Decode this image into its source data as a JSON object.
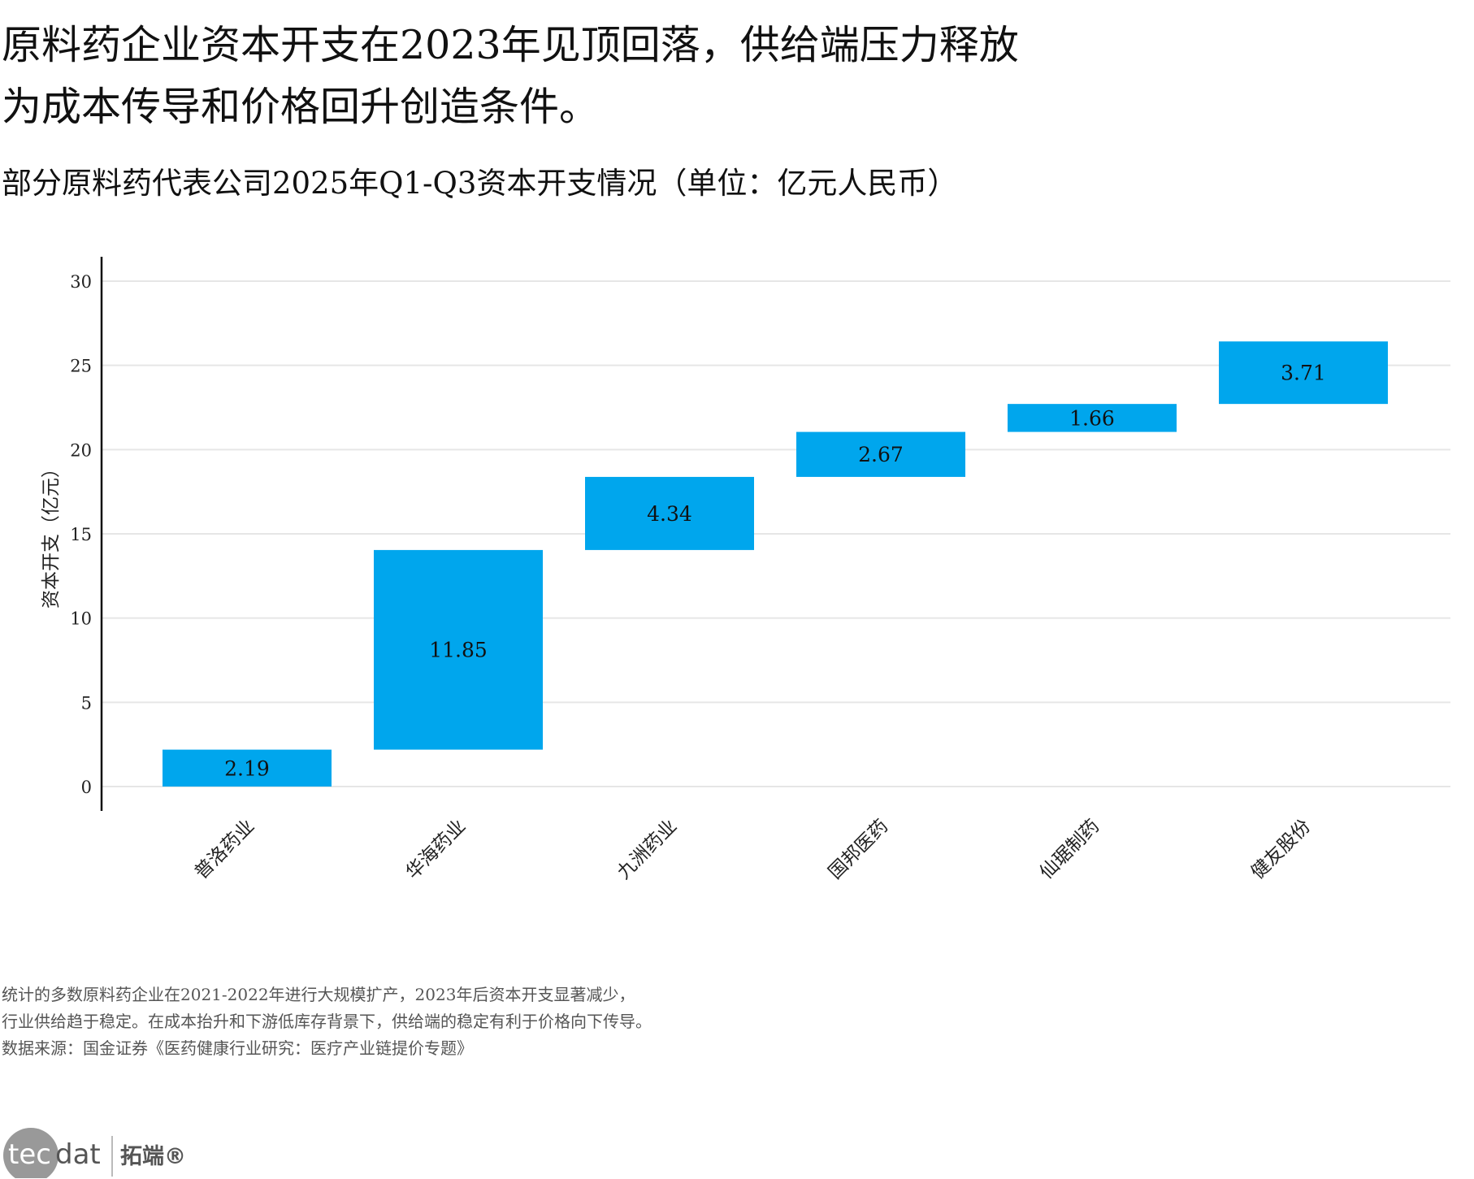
{
  "title_lines": [
    "原料药企业资本开支在2023年见顶回落，供给端压力释放",
    "为成本传导和价格回升创造条件。"
  ],
  "chart_data": {
    "type": "waterfall",
    "title": "部分原料药代表公司2025年Q1-Q3资本开支情况（单位：亿元人民币）",
    "ylabel": "资本开支（亿元）",
    "xlabel": "",
    "categories": [
      "普洛药业",
      "华海药业",
      "九洲药业",
      "国邦医药",
      "仙琚制药",
      "健友股份"
    ],
    "values": [
      2.19,
      11.85,
      4.34,
      2.67,
      1.66,
      3.71
    ],
    "data_labels": [
      "2.19",
      "11.85",
      "4.34",
      "2.67",
      "1.66",
      "3.71"
    ],
    "ylim": [
      0,
      30
    ],
    "yticks": [
      0,
      5,
      10,
      15,
      20,
      25,
      30
    ],
    "grid": true,
    "bar_color": "#00a6ed"
  },
  "footnotes": [
    "统计的多数原料药企业在2021-2022年进行大规模扩产，2023年后资本开支显著减少，",
    "行业供给趋于稳定。在成本抬升和下游低库存背景下，供给端的稳定有利于价格向下传导。",
    "数据来源：国金证券《医药健康行业研究：医疗产业链提价专题》"
  ],
  "logo": {
    "text": "tecdat",
    "cn": "拓端®"
  }
}
